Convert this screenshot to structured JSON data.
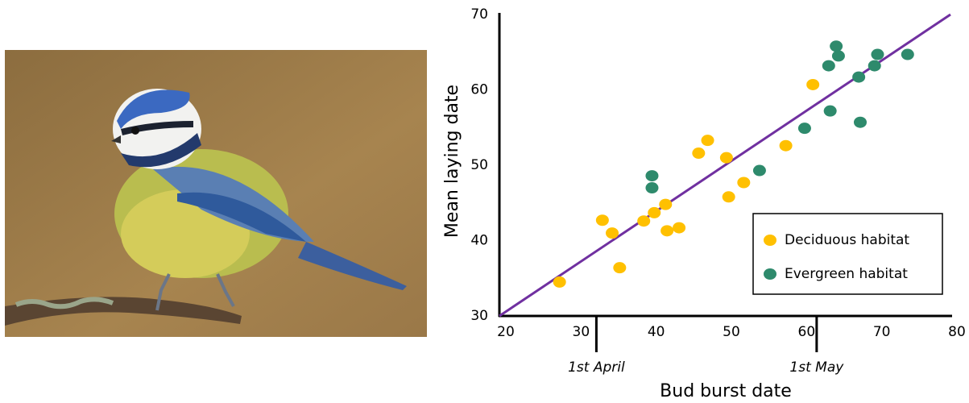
{
  "chart_data": {
    "type": "scatter",
    "xlabel": "Bud burst date",
    "ylabel": "Mean laying date",
    "xlim": [
      20,
      80
    ],
    "ylim": [
      30,
      70
    ],
    "xticks": [
      20,
      30,
      40,
      50,
      60,
      70,
      80
    ],
    "yticks": [
      30,
      40,
      50,
      60,
      70
    ],
    "legend": "lower right",
    "series": [
      {
        "name": "Deciduous habitat",
        "color": "#ffc000",
        "x": [
          28.0,
          33.7,
          35.0,
          36.0,
          39.2,
          40.6,
          42.1,
          42.3,
          43.9,
          46.5,
          47.7,
          50.2,
          50.5,
          52.5,
          58.1,
          61.7
        ],
        "values": [
          34.5,
          42.7,
          41.0,
          36.4,
          42.6,
          43.7,
          44.8,
          41.3,
          41.7,
          51.6,
          53.3,
          51.0,
          45.8,
          47.7,
          52.6,
          60.7
        ]
      },
      {
        "name": "Evergreen habitat",
        "color": "#2e8a6c",
        "x": [
          40.3,
          40.3,
          54.6,
          60.6,
          64.0,
          63.8,
          64.8,
          65.1,
          67.8,
          68.0,
          69.9,
          70.3,
          74.3
        ],
        "values": [
          48.6,
          47.0,
          49.3,
          54.9,
          57.2,
          63.2,
          65.8,
          64.5,
          61.7,
          55.7,
          63.2,
          64.7,
          64.7
        ]
      }
    ],
    "trendline": {
      "color": "#7030a0",
      "x": [
        20,
        80
      ],
      "values": [
        30,
        70
      ]
    },
    "annotations": [
      {
        "text": "1st April",
        "x": 32.9
      },
      {
        "text": "1st May",
        "x": 62.2
      }
    ]
  }
}
